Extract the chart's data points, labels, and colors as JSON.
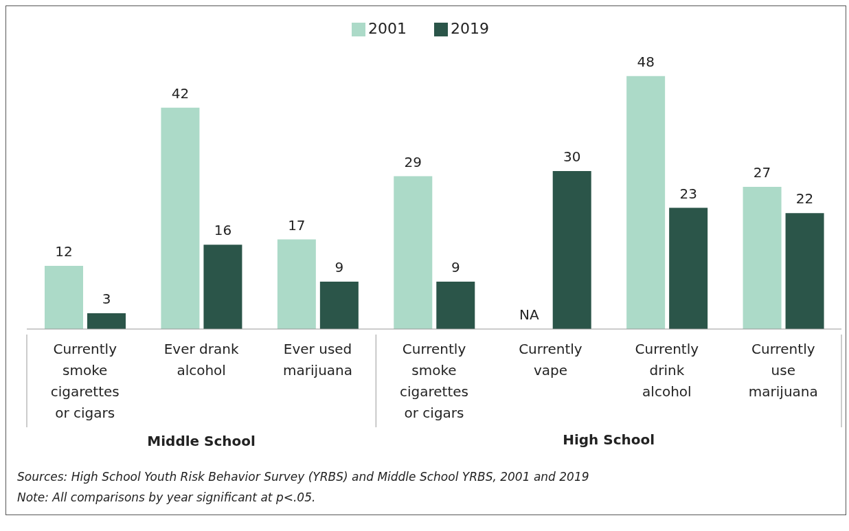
{
  "chart_data": {
    "type": "bar",
    "categories": [
      "Currently smoke cigarettes or cigars",
      "Ever drank alcohol",
      "Ever used marijuana",
      "Currently smoke cigarettes or cigars",
      "Currently vape",
      "Currently drink alcohol",
      "Currently use marijuana"
    ],
    "series": [
      {
        "name": "2001",
        "color": "#acdac8",
        "values": [
          12,
          42,
          17,
          29,
          null,
          48,
          27
        ],
        "value_labels": [
          "12",
          "42",
          "17",
          "29",
          "NA",
          "48",
          "27"
        ]
      },
      {
        "name": "2019",
        "color": "#2b5549",
        "values": [
          3,
          16,
          9,
          9,
          30,
          23,
          22
        ]
      }
    ],
    "data_labels": true,
    "legend": "top",
    "annotations": [
      "Middle School",
      "High School",
      "Sources: High School Youth Risk Behavior Survey (YRBS) and Middle School YRBS, 2001 and 2019",
      "Note: All comparisons by year significant at p<.05."
    ]
  }
}
